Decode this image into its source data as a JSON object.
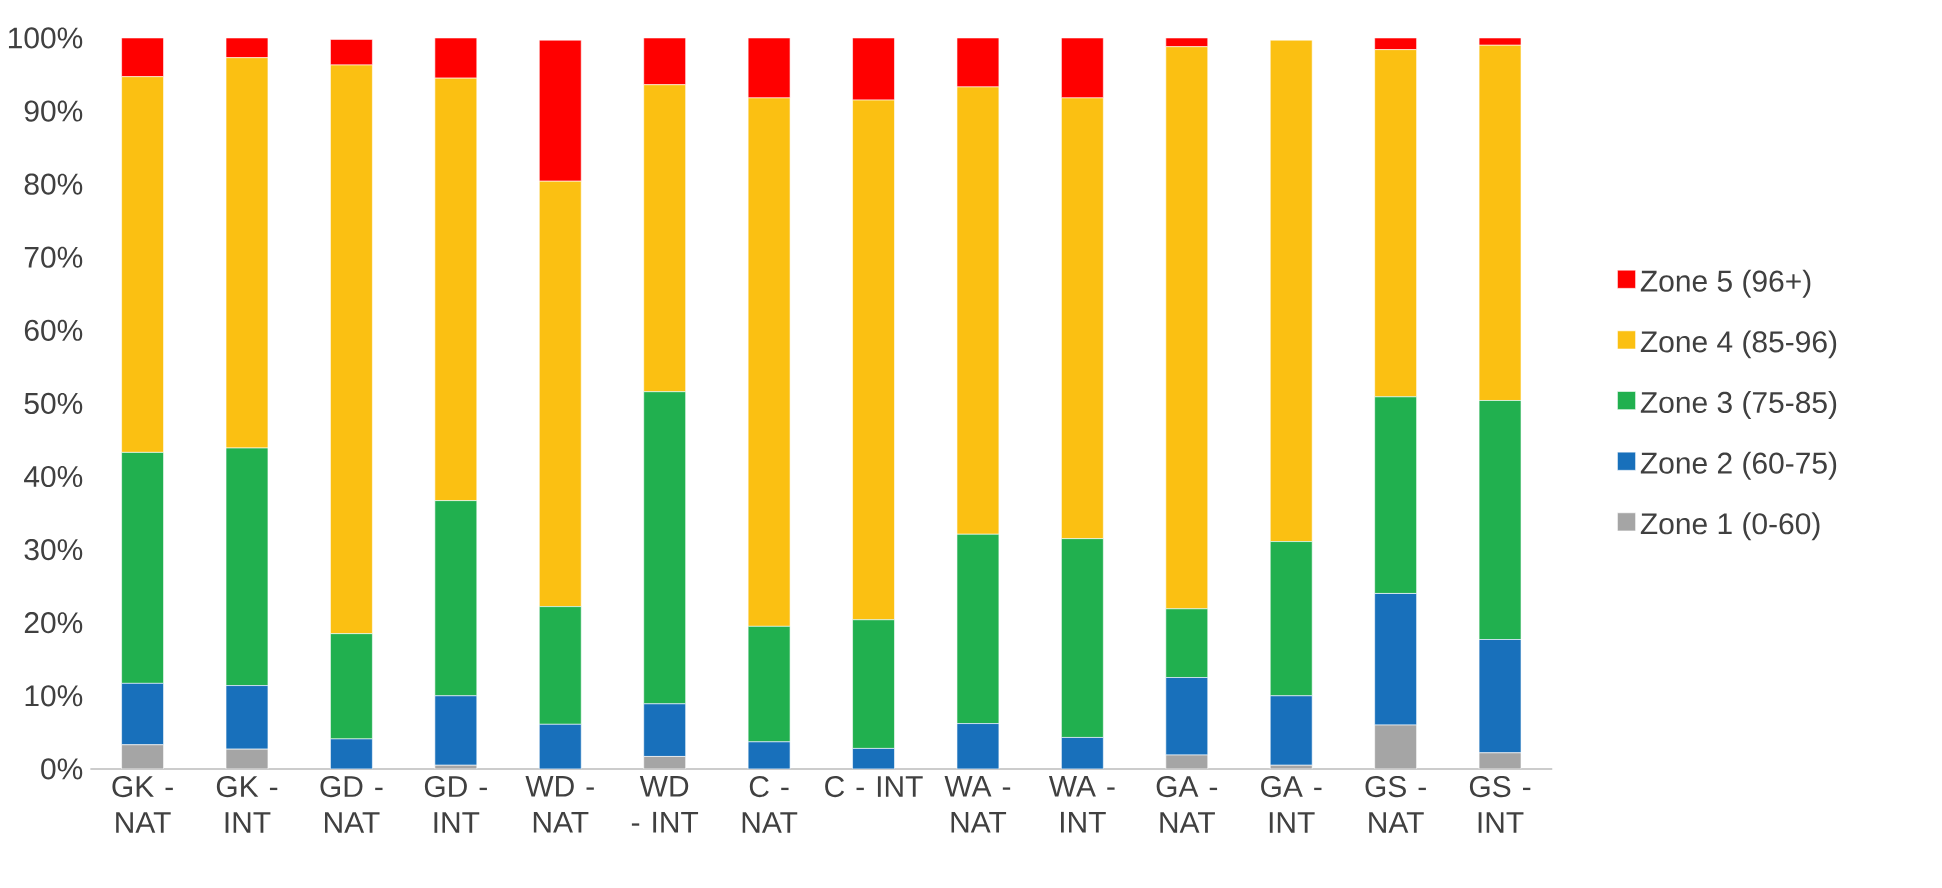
{
  "chart_data": {
    "type": "bar",
    "stacked": true,
    "categories": [
      "GK - NAT",
      "GK - INT",
      "GD - NAT",
      "GD - INT",
      "WD - NAT",
      "WD - INT",
      "C - NAT",
      "C - INT",
      "WA - NAT",
      "WA - INT",
      "GA - NAT",
      "GA - INT",
      "GS - NAT",
      "GS - INT"
    ],
    "series": [
      {
        "name": "Zone 1 (0-60)",
        "color": "#a5a5a5",
        "values": [
          3.3,
          2.7,
          null,
          0.5,
          null,
          1.7,
          0,
          0,
          0,
          0,
          1.9,
          0.5,
          6.0,
          2.2
        ]
      },
      {
        "name": "Zone 2 (60-75)",
        "color": "#1870bb",
        "values": [
          8.4,
          8.7,
          4.1,
          9.5,
          6.1,
          7.2,
          3.7,
          2.8,
          6.2,
          4.3,
          10.6,
          9.5,
          18.0,
          15.5
        ]
      },
      {
        "name": "Zone 3 (75-85)",
        "color": "#21b04f",
        "values": [
          31.6,
          32.5,
          14.4,
          26.7,
          16.1,
          42.7,
          15.8,
          17.6,
          25.9,
          27.2,
          9.4,
          21.1,
          26.9,
          32.7
        ]
      },
      {
        "name": "Zone 4 (85-96)",
        "color": "#fbc012",
        "values": [
          51.4,
          53.4,
          77.8,
          57.8,
          58.2,
          42.0,
          72.3,
          71.1,
          61.2,
          60.3,
          76.9,
          68.6,
          47.5,
          48.6
        ]
      },
      {
        "name": "Zone 5 (96+)",
        "color": "#ff0000",
        "values": [
          5.3,
          2.7,
          3.5,
          5.5,
          19.3,
          6.4,
          8.2,
          8.5,
          6.7,
          8.2,
          1.2,
          null,
          1.6,
          1.0
        ]
      }
    ],
    "ylim": [
      0,
      100
    ],
    "yticks": [
      {
        "value": 0,
        "label": "0%"
      },
      {
        "value": 10,
        "label": "10%"
      },
      {
        "value": 20,
        "label": "20%"
      },
      {
        "value": 30,
        "label": "30%"
      },
      {
        "value": 40,
        "label": "40%"
      },
      {
        "value": 50,
        "label": "50%"
      },
      {
        "value": 60,
        "label": "60%"
      },
      {
        "value": 70,
        "label": "70%"
      },
      {
        "value": 80,
        "label": "80%"
      },
      {
        "value": 90,
        "label": "90%"
      },
      {
        "value": 100,
        "label": "100%"
      }
    ],
    "legend": "right"
  }
}
